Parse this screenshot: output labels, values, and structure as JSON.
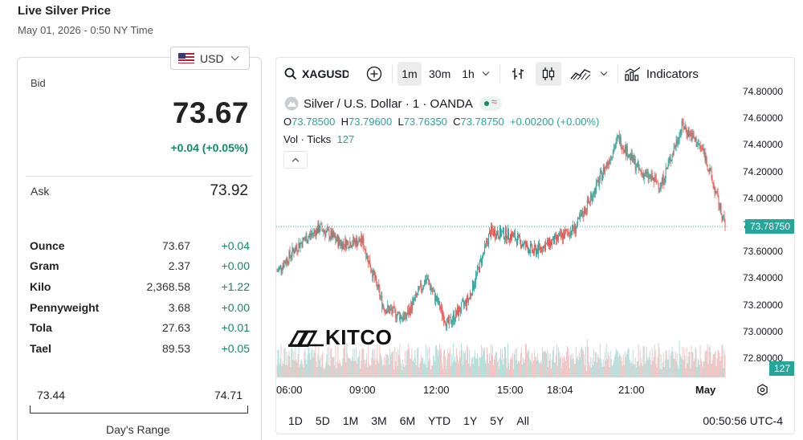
{
  "page": {
    "title": "Live Silver Price",
    "datetime": "May 01, 2026 - 0:50 NY Time"
  },
  "currency": {
    "selected": "USD",
    "icon": "us-flag-icon"
  },
  "quote": {
    "bid_label": "Bid",
    "bid": "73.67",
    "change": "+0.04 (+0.05%)",
    "ask_label": "Ask",
    "ask": "73.92"
  },
  "units": [
    {
      "name": "Ounce",
      "value": "73.67",
      "change": "+0.04"
    },
    {
      "name": "Gram",
      "value": "2.37",
      "change": "+0.00"
    },
    {
      "name": "Kilo",
      "value": "2,368.58",
      "change": "+1.22"
    },
    {
      "name": "Pennyweight",
      "value": "3.68",
      "change": "+0.00"
    },
    {
      "name": "Tola",
      "value": "27.63",
      "change": "+0.01"
    },
    {
      "name": "Tael",
      "value": "89.53",
      "change": "+0.05"
    }
  ],
  "day_range": {
    "low": "73.44",
    "high": "74.71",
    "label": "Day's Range"
  },
  "chart": {
    "symbol": "XAGUSD",
    "intervals": [
      "1m",
      "30m",
      "1h"
    ],
    "active_interval": "1m",
    "indicators_label": "Indicators",
    "legend_title": "Silver / U.S. Dollar · 1 · OANDA",
    "legend_o": "73.78500",
    "legend_h": "73.79600",
    "legend_l": "73.76350",
    "legend_c": "73.78750",
    "legend_change": "+0.00200 (+0.00%)",
    "vol_label": "Vol · Ticks",
    "vol_value": "127",
    "price_scale": [
      "74.80000",
      "74.60000",
      "74.40000",
      "74.20000",
      "74.00000",
      "73.80000",
      "73.60000",
      "73.40000",
      "73.20000",
      "73.00000",
      "72.80000"
    ],
    "current_price_tag": "73.78750",
    "current_volume_tag": "127",
    "time_labels": [
      "06:00",
      "09:00",
      "12:00",
      "15:00",
      "18:04",
      "21:00",
      "May"
    ],
    "ranges": [
      "1D",
      "5D",
      "1M",
      "3M",
      "6M",
      "YTD",
      "1Y",
      "5Y",
      "All"
    ],
    "clock": "00:50:56 UTC-4",
    "watermark": "KITCO",
    "colors": {
      "up": "#26a69a",
      "down": "#ef5350",
      "positive_text": "#128a63"
    }
  },
  "chart_data": {
    "type": "line",
    "title": "Silver / U.S. Dollar · 1 · OANDA",
    "ylim": [
      72.7,
      74.8
    ],
    "x": [
      "06:00",
      "07:00",
      "08:00",
      "09:00",
      "09:30",
      "10:00",
      "10:30",
      "11:00",
      "12:00",
      "13:00",
      "14:00",
      "15:00",
      "16:00",
      "17:00",
      "18:04",
      "19:00",
      "20:00",
      "21:00",
      "22:00",
      "23:00",
      "00:00",
      "00:50"
    ],
    "series": [
      {
        "values": [
          73.45,
          73.65,
          73.78,
          73.66,
          73.68,
          73.18,
          73.1,
          73.4,
          73.05,
          73.25,
          73.75,
          73.72,
          73.6,
          73.68,
          73.78,
          74.1,
          74.45,
          74.2,
          74.1,
          74.55,
          74.35,
          73.79
        ]
      }
    ]
  }
}
